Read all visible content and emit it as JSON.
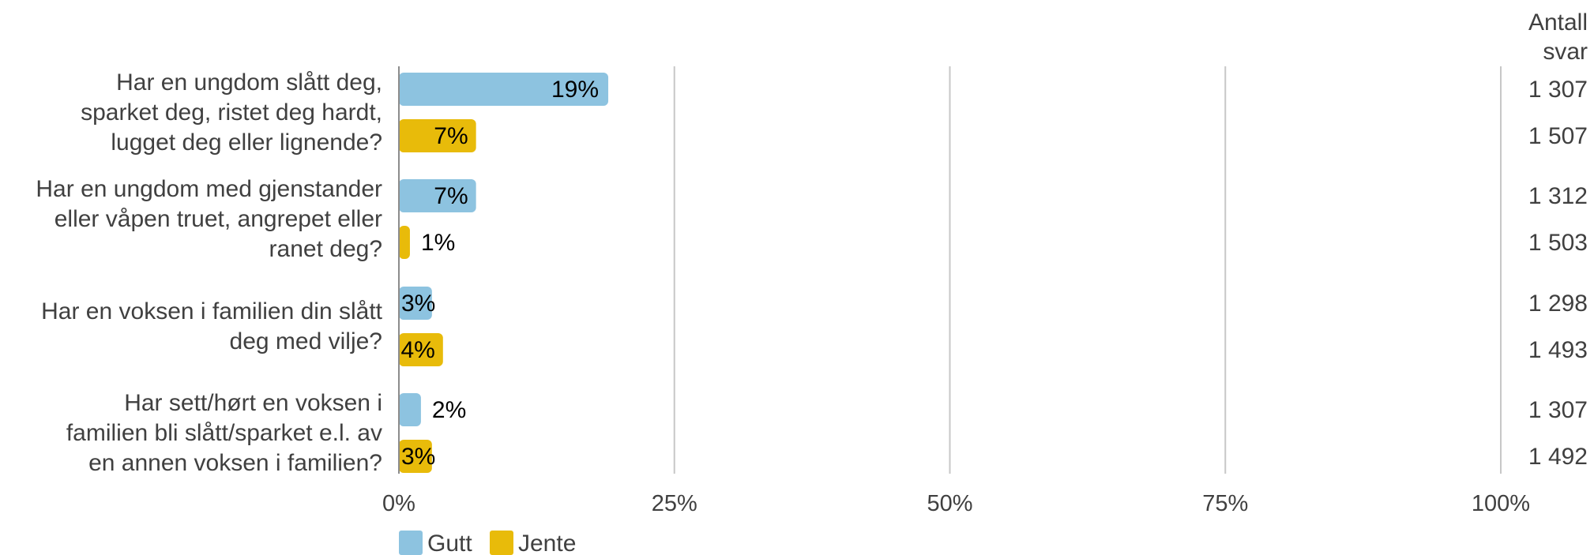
{
  "chart_data": {
    "type": "bar",
    "orientation": "horizontal",
    "categories": [
      [
        "Har en ungdom slått deg,",
        "sparket deg, ristet deg hardt,",
        "lugget deg eller lignende?"
      ],
      [
        "Har en ungdom med gjenstander",
        "eller våpen truet, angrepet eller",
        "ranet deg?"
      ],
      [
        "Har en voksen i familien din slått",
        "deg med vilje?"
      ],
      [
        "Har sett/hørt en voksen i",
        "familien bli slått/sparket e.l. av",
        "en annen voksen i familien?"
      ]
    ],
    "series": [
      {
        "name": "Gutt",
        "color": "#8dc3e0",
        "values": [
          19,
          7,
          3,
          2
        ],
        "counts": [
          "1 307",
          "1 312",
          "1 298",
          "1 307"
        ]
      },
      {
        "name": "Jente",
        "color": "#e8bb0a",
        "values": [
          7,
          1,
          4,
          3
        ],
        "counts": [
          "1 507",
          "1 503",
          "1 493",
          "1 492"
        ]
      }
    ],
    "value_suffix": "%",
    "xlim": [
      0,
      100
    ],
    "xticks": [
      "0%",
      "25%",
      "50%",
      "75%",
      "100%"
    ],
    "count_header": [
      "Antall",
      "svar"
    ],
    "grid": true,
    "legend_position": "bottom-left"
  }
}
